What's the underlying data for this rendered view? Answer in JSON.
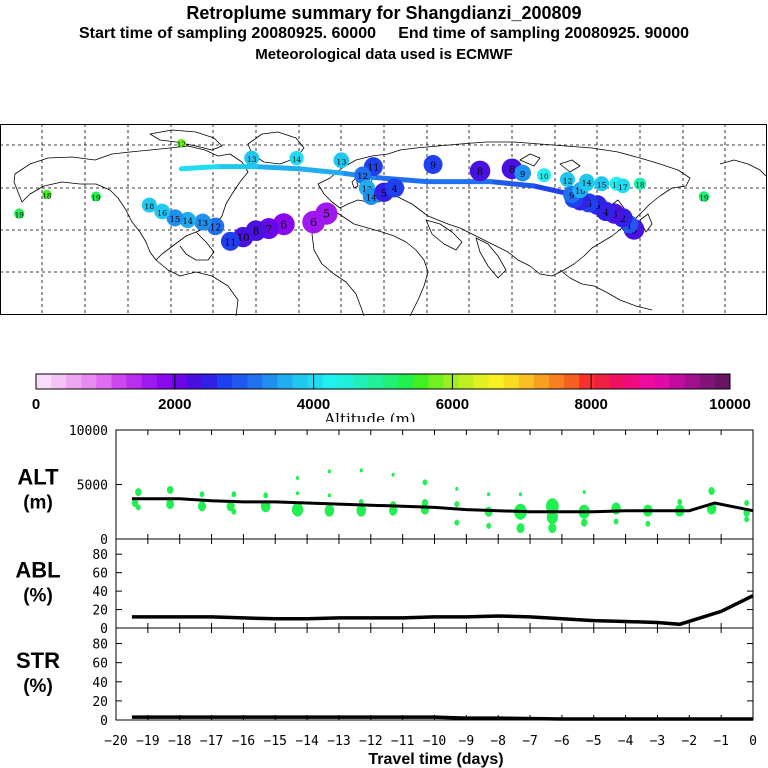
{
  "header": {
    "title": "Retroplume summary for Shangdianzi_200809",
    "sampling": "Start time of sampling 20080925. 60000     End time of sampling 20080925. 90000",
    "met": "Meteorological data used is ECMWF"
  },
  "colorbar": {
    "label": "Altitude (m)",
    "tick_labels": [
      "0",
      "2000",
      "4000",
      "6000",
      "8000",
      "10000"
    ],
    "colors": [
      "#fadcfa",
      "#f5c2f5",
      "#eea6f0",
      "#e98af0",
      "#df6cf2",
      "#cf46f0",
      "#ba2ef0",
      "#a018f0",
      "#8a0af0",
      "#6a06e8",
      "#4a10e0",
      "#3020e8",
      "#2040f0",
      "#2058f0",
      "#2070f0",
      "#2090f0",
      "#20aef0",
      "#20c8f0",
      "#20dcf0",
      "#20f0f0",
      "#20f0dc",
      "#20f0b8",
      "#20f098",
      "#20f078",
      "#20f050",
      "#40f020",
      "#70f020",
      "#98f020",
      "#c0f020",
      "#e0f020",
      "#f8f020",
      "#f8dc20",
      "#f8c020",
      "#f8a020",
      "#f88020",
      "#f86020",
      "#f83030",
      "#f02040",
      "#f01060",
      "#f00a80",
      "#f00aa0",
      "#e00aa8",
      "#c00aa0",
      "#a0108c",
      "#801478",
      "#6a1464"
    ]
  },
  "chart_data": [
    {
      "type": "scatter",
      "name": "ALT",
      "ylabel_lines": [
        "ALT",
        "(m)"
      ],
      "ylim": [
        0,
        10000
      ],
      "y_ticks": [
        0,
        5000,
        10000
      ],
      "y_tick_labels": [
        "0",
        "5000",
        "10000"
      ],
      "marker_color": "#20f050",
      "median_line": {
        "x": [
          -19.5,
          -18,
          -17,
          -16,
          -15,
          -14,
          -13,
          -12,
          -11,
          -10,
          -9,
          -8,
          -7,
          -6,
          -5,
          -4,
          -3,
          -2,
          -1.2,
          0
        ],
        "y": [
          3700,
          3700,
          3500,
          3400,
          3400,
          3300,
          3200,
          3100,
          3000,
          2900,
          2700,
          2600,
          2500,
          2500,
          2500,
          2600,
          2600,
          2600,
          3300,
          2600
        ]
      },
      "points": [
        {
          "x": -19.3,
          "y": 4300,
          "size": 4
        },
        {
          "x": -19.4,
          "y": 3300,
          "size": 4
        },
        {
          "x": -19.3,
          "y": 2900,
          "size": 3
        },
        {
          "x": -18.3,
          "y": 4500,
          "size": 4
        },
        {
          "x": -18.3,
          "y": 3200,
          "size": 5
        },
        {
          "x": -17.3,
          "y": 4100,
          "size": 3
        },
        {
          "x": -17.3,
          "y": 3000,
          "size": 5
        },
        {
          "x": -16.3,
          "y": 4100,
          "size": 3
        },
        {
          "x": -16.4,
          "y": 3000,
          "size": 5
        },
        {
          "x": -16.3,
          "y": 2500,
          "size": 3
        },
        {
          "x": -15.3,
          "y": 4000,
          "size": 3
        },
        {
          "x": -15.3,
          "y": 3000,
          "size": 6
        },
        {
          "x": -14.3,
          "y": 5600,
          "size": 2
        },
        {
          "x": -14.3,
          "y": 4200,
          "size": 2
        },
        {
          "x": -14.3,
          "y": 2700,
          "size": 7
        },
        {
          "x": -13.3,
          "y": 6200,
          "size": 2
        },
        {
          "x": -13.3,
          "y": 4000,
          "size": 2
        },
        {
          "x": -13.3,
          "y": 2600,
          "size": 6
        },
        {
          "x": -12.3,
          "y": 6300,
          "size": 2
        },
        {
          "x": -12.3,
          "y": 3400,
          "size": 3
        },
        {
          "x": -12.3,
          "y": 2600,
          "size": 6
        },
        {
          "x": -11.3,
          "y": 5900,
          "size": 2
        },
        {
          "x": -11.3,
          "y": 3100,
          "size": 4
        },
        {
          "x": -11.3,
          "y": 2600,
          "size": 5
        },
        {
          "x": -10.3,
          "y": 5200,
          "size": 3
        },
        {
          "x": -10.3,
          "y": 3300,
          "size": 4
        },
        {
          "x": -10.3,
          "y": 2700,
          "size": 5
        },
        {
          "x": -9.3,
          "y": 4600,
          "size": 2
        },
        {
          "x": -9.3,
          "y": 3200,
          "size": 3
        },
        {
          "x": -9.3,
          "y": 1500,
          "size": 3
        },
        {
          "x": -8.3,
          "y": 2500,
          "size": 5
        },
        {
          "x": -8.3,
          "y": 1200,
          "size": 3
        },
        {
          "x": -8.3,
          "y": 4100,
          "size": 2
        },
        {
          "x": -7.3,
          "y": 2500,
          "size": 8
        },
        {
          "x": -7.3,
          "y": 1000,
          "size": 5
        },
        {
          "x": -7.3,
          "y": 4100,
          "size": 2
        },
        {
          "x": -6.3,
          "y": 3000,
          "size": 8
        },
        {
          "x": -6.3,
          "y": 2000,
          "size": 7
        },
        {
          "x": -6.3,
          "y": 1000,
          "size": 5
        },
        {
          "x": -5.3,
          "y": 2500,
          "size": 7
        },
        {
          "x": -5.3,
          "y": 1500,
          "size": 4
        },
        {
          "x": -5.3,
          "y": 4300,
          "size": 2
        },
        {
          "x": -4.3,
          "y": 2800,
          "size": 6
        },
        {
          "x": -4.3,
          "y": 1600,
          "size": 3
        },
        {
          "x": -3.3,
          "y": 2600,
          "size": 6
        },
        {
          "x": -3.3,
          "y": 1400,
          "size": 3
        },
        {
          "x": -2.3,
          "y": 2600,
          "size": 6
        },
        {
          "x": -2.3,
          "y": 3400,
          "size": 3
        },
        {
          "x": -1.3,
          "y": 4400,
          "size": 4
        },
        {
          "x": -1.3,
          "y": 2800,
          "size": 6
        },
        {
          "x": -0.2,
          "y": 3300,
          "size": 3
        },
        {
          "x": -0.2,
          "y": 2400,
          "size": 4
        },
        {
          "x": -0.2,
          "y": 1800,
          "size": 3
        }
      ]
    },
    {
      "type": "line",
      "name": "ABL",
      "ylabel_lines": [
        "ABL",
        "(%)"
      ],
      "ylim": [
        0,
        90
      ],
      "y_ticks": [
        0,
        20,
        40,
        60,
        80
      ],
      "y_tick_labels": [
        "0",
        "20",
        "40",
        "60",
        "80"
      ],
      "x": [
        -19.5,
        -18,
        -17,
        -16,
        -15,
        -14,
        -13,
        -12,
        -11,
        -10,
        -9,
        -8,
        -7,
        -6,
        -5,
        -4,
        -3,
        -2.3,
        -1,
        0
      ],
      "y": [
        12,
        12,
        12,
        11,
        10,
        10,
        11,
        11,
        11,
        12,
        12,
        13,
        12,
        10,
        8,
        7,
        6,
        4,
        18,
        35
      ]
    },
    {
      "type": "line",
      "name": "STR",
      "ylabel_lines": [
        "STR",
        "(%)"
      ],
      "ylim": [
        0,
        90
      ],
      "y_ticks": [
        0,
        20,
        40,
        60,
        80
      ],
      "y_tick_labels": [
        "0",
        "20",
        "40",
        "60",
        "80"
      ],
      "x": [
        -19.5,
        -18,
        -16,
        -14,
        -12,
        -10,
        -9,
        -8,
        -6,
        -4,
        -3,
        -2,
        -1,
        0
      ],
      "y": [
        3,
        3,
        3,
        3,
        3,
        3,
        2,
        2,
        1,
        1,
        1,
        1,
        1,
        1
      ]
    }
  ],
  "x_axis": {
    "label": "Travel time (days)",
    "xlim": [
      -20,
      0
    ],
    "ticks": [
      -20,
      -19,
      -18,
      -17,
      -16,
      -15,
      -14,
      -13,
      -12,
      -11,
      -10,
      -9,
      -8,
      -7,
      -6,
      -5,
      -4,
      -3,
      -2,
      -1,
      0
    ],
    "tick_labels": [
      "−20",
      "−19",
      "−18",
      "−17",
      "−16",
      "−15",
      "−14",
      "−13",
      "−12",
      "−11",
      "−10",
      "−9",
      "−8",
      "−7",
      "−6",
      "−5",
      "−4",
      "−3",
      "−2",
      "−1",
      "0"
    ]
  },
  "map": {
    "lon_range": [
      -180,
      180
    ],
    "lat_range": [
      0,
      90
    ],
    "plume": [
      {
        "lon": 117.2,
        "lat": 40.6,
        "label": "0",
        "alt": 2200
      },
      {
        "lon": 115,
        "lat": 43,
        "label": "1",
        "alt": 3000
      },
      {
        "lon": 112,
        "lat": 46,
        "label": "2",
        "alt": 2600
      },
      {
        "lon": 108,
        "lat": 48,
        "label": "3",
        "alt": 2300
      },
      {
        "lon": 104,
        "lat": 49,
        "label": "4",
        "alt": 2600
      },
      {
        "lon": 100,
        "lat": 52,
        "label": "5",
        "alt": 2500
      },
      {
        "lon": 96,
        "lat": 53,
        "label": "6",
        "alt": 2700
      },
      {
        "lon": 92,
        "lat": 54,
        "label": "7",
        "alt": 2600
      },
      {
        "lon": 89,
        "lat": 55,
        "label": "8",
        "alt": 2800
      },
      {
        "lon": 88,
        "lat": 57,
        "label": "9",
        "alt": 3200
      },
      {
        "lon": 92,
        "lat": 59,
        "label": "10",
        "alt": 3600
      },
      {
        "lon": 95,
        "lat": 62,
        "label": "11",
        "alt": 3800
      },
      {
        "lon": 86,
        "lat": 64,
        "label": "12",
        "alt": 3900
      },
      {
        "lon": 95,
        "lat": 63,
        "label": "14",
        "alt": 3700
      },
      {
        "lon": 102,
        "lat": 62,
        "label": "15",
        "alt": 3900
      },
      {
        "lon": 109,
        "lat": 62,
        "label": "16",
        "alt": 4200
      },
      {
        "lon": 112,
        "lat": 61,
        "label": "17",
        "alt": 4000
      },
      {
        "lon": 120,
        "lat": 62,
        "label": "18",
        "alt": 4700
      },
      {
        "lon": 60,
        "lat": 69,
        "label": "8",
        "alt": 2200
      },
      {
        "lon": 65,
        "lat": 67,
        "label": "9",
        "alt": 3400
      },
      {
        "lon": 75,
        "lat": 66,
        "label": "10",
        "alt": 4200
      },
      {
        "lon": 45,
        "lat": 68,
        "label": "8",
        "alt": 2200
      },
      {
        "lon": 23,
        "lat": 71,
        "label": "9",
        "alt": 2700
      },
      {
        "lon": -5,
        "lat": 70,
        "label": "11",
        "alt": 2700
      },
      {
        "lon": -10,
        "lat": 66,
        "label": "12",
        "alt": 3200
      },
      {
        "lon": -8,
        "lat": 60,
        "label": "13",
        "alt": 3500
      },
      {
        "lon": -6,
        "lat": 56,
        "label": "14",
        "alt": 3300
      },
      {
        "lon": 0,
        "lat": 58,
        "label": "5",
        "alt": 2600
      },
      {
        "lon": 5,
        "lat": 60,
        "label": "4",
        "alt": 2700
      },
      {
        "lon": -27,
        "lat": 48,
        "label": "5",
        "alt": 1700
      },
      {
        "lon": -33,
        "lat": 44,
        "label": "6",
        "alt": 1600
      },
      {
        "lon": -47,
        "lat": 43,
        "label": "6",
        "alt": 1800
      },
      {
        "lon": -54,
        "lat": 41,
        "label": "7",
        "alt": 2100
      },
      {
        "lon": -60,
        "lat": 40,
        "label": "8",
        "alt": 2200
      },
      {
        "lon": -66,
        "lat": 37,
        "label": "10",
        "alt": 2300
      },
      {
        "lon": -72,
        "lat": 35,
        "label": "11",
        "alt": 2700
      },
      {
        "lon": -79,
        "lat": 42,
        "label": "12",
        "alt": 3100
      },
      {
        "lon": -85,
        "lat": 44,
        "label": "13",
        "alt": 3300
      },
      {
        "lon": -92,
        "lat": 45,
        "label": "14",
        "alt": 3500
      },
      {
        "lon": -98,
        "lat": 46,
        "label": "15",
        "alt": 3300
      },
      {
        "lon": -104,
        "lat": 49,
        "label": "16",
        "alt": 3700
      },
      {
        "lon": -110,
        "lat": 52,
        "label": "18",
        "alt": 3900
      },
      {
        "lon": -135,
        "lat": 56,
        "label": "19",
        "alt": 5400
      },
      {
        "lon": -158,
        "lat": 57,
        "label": "18",
        "alt": 5600
      },
      {
        "lon": -171,
        "lat": 48,
        "label": "19",
        "alt": 5300
      },
      {
        "lon": -95,
        "lat": 81,
        "label": "12",
        "alt": 5800
      },
      {
        "lon": -62,
        "lat": 74,
        "label": "13",
        "alt": 3900
      },
      {
        "lon": -41,
        "lat": 74,
        "label": "14",
        "alt": 4100
      },
      {
        "lon": -20,
        "lat": 73,
        "label": "13",
        "alt": 3700
      },
      {
        "lon": 150,
        "lat": 56,
        "label": "19",
        "alt": 5200
      }
    ]
  }
}
